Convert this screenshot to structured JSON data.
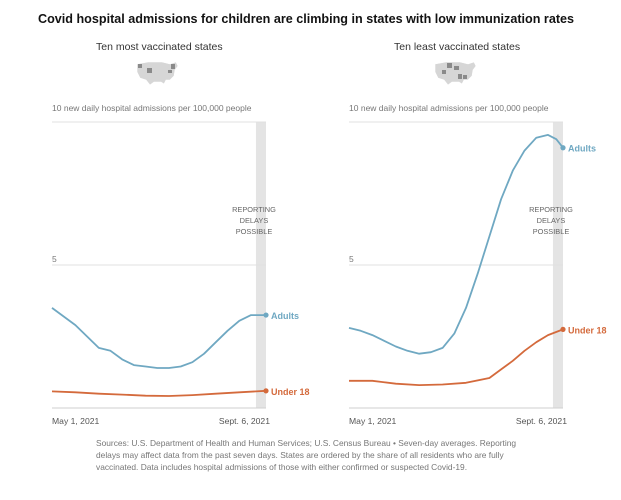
{
  "title": "Covid hospital admissions for children are climbing in states with low immunization rates",
  "colors": {
    "adults": "#6fa8c2",
    "under18": "#d46a3c",
    "shade": "#e4e4e4",
    "grid": "#e0e0e0"
  },
  "map_icon": "us-states-map-icon",
  "footer": "Sources: U.S. Department of Health and Human Services; U.S. Census Bureau  •  Seven-day averages. Reporting delays may affect data from the past seven days. States are ordered by the share of all residents who are fully vaccinated. Data includes hospital admissions of those with either confirmed or suspected Covid-19.",
  "chart_data": [
    {
      "type": "line",
      "title": "Ten most vaccinated states",
      "ylabel": "new daily hospital admissions per 100,000 people",
      "ylim": [
        0,
        10
      ],
      "yticks": [
        {
          "value": 10,
          "label": "10"
        },
        {
          "value": 5,
          "label": "5"
        }
      ],
      "xlim": [
        "2021-05-01",
        "2021-09-06"
      ],
      "xticks": [
        {
          "date": "2021-05-01",
          "label": "May 1, 2021"
        },
        {
          "date": "2021-09-06",
          "label": "Sept. 6, 2021"
        }
      ],
      "shade": {
        "from": "2021-08-31",
        "to": "2021-09-06",
        "label": [
          "REPORTING",
          "DELAYS",
          "POSSIBLE"
        ]
      },
      "series": [
        {
          "name": "Adults",
          "key": "adults",
          "points": [
            [
              "2021-05-01",
              3.5
            ],
            [
              "2021-05-08",
              3.2
            ],
            [
              "2021-05-15",
              2.9
            ],
            [
              "2021-05-22",
              2.5
            ],
            [
              "2021-05-29",
              2.1
            ],
            [
              "2021-06-05",
              2.0
            ],
            [
              "2021-06-12",
              1.7
            ],
            [
              "2021-06-19",
              1.5
            ],
            [
              "2021-06-26",
              1.45
            ],
            [
              "2021-07-03",
              1.4
            ],
            [
              "2021-07-10",
              1.4
            ],
            [
              "2021-07-17",
              1.45
            ],
            [
              "2021-07-24",
              1.6
            ],
            [
              "2021-07-31",
              1.9
            ],
            [
              "2021-08-07",
              2.3
            ],
            [
              "2021-08-14",
              2.7
            ],
            [
              "2021-08-21",
              3.05
            ],
            [
              "2021-08-28",
              3.25
            ],
            [
              "2021-09-06",
              3.25
            ]
          ]
        },
        {
          "name": "Under 18",
          "key": "under18",
          "points": [
            [
              "2021-05-01",
              0.58
            ],
            [
              "2021-05-15",
              0.55
            ],
            [
              "2021-05-29",
              0.5
            ],
            [
              "2021-06-12",
              0.47
            ],
            [
              "2021-06-26",
              0.43
            ],
            [
              "2021-07-10",
              0.42
            ],
            [
              "2021-07-24",
              0.45
            ],
            [
              "2021-08-07",
              0.5
            ],
            [
              "2021-08-21",
              0.55
            ],
            [
              "2021-09-06",
              0.6
            ]
          ]
        }
      ]
    },
    {
      "type": "line",
      "title": "Ten least vaccinated states",
      "ylabel": "new daily hospital admissions per 100,000 people",
      "ylim": [
        0,
        10
      ],
      "yticks": [
        {
          "value": 10,
          "label": "10"
        },
        {
          "value": 5,
          "label": "5"
        }
      ],
      "xlim": [
        "2021-05-01",
        "2021-09-06"
      ],
      "xticks": [
        {
          "date": "2021-05-01",
          "label": "May 1, 2021"
        },
        {
          "date": "2021-09-06",
          "label": "Sept. 6, 2021"
        }
      ],
      "shade": {
        "from": "2021-08-31",
        "to": "2021-09-06",
        "label": [
          "REPORTING",
          "DELAYS",
          "POSSIBLE"
        ]
      },
      "series": [
        {
          "name": "Adults",
          "key": "adults",
          "points": [
            [
              "2021-05-01",
              2.8
            ],
            [
              "2021-05-08",
              2.7
            ],
            [
              "2021-05-15",
              2.55
            ],
            [
              "2021-05-22",
              2.35
            ],
            [
              "2021-05-29",
              2.15
            ],
            [
              "2021-06-05",
              2.0
            ],
            [
              "2021-06-12",
              1.9
            ],
            [
              "2021-06-19",
              1.95
            ],
            [
              "2021-06-26",
              2.1
            ],
            [
              "2021-07-03",
              2.6
            ],
            [
              "2021-07-10",
              3.5
            ],
            [
              "2021-07-17",
              4.7
            ],
            [
              "2021-07-24",
              6.0
            ],
            [
              "2021-07-31",
              7.3
            ],
            [
              "2021-08-07",
              8.3
            ],
            [
              "2021-08-14",
              9.0
            ],
            [
              "2021-08-21",
              9.45
            ],
            [
              "2021-08-28",
              9.55
            ],
            [
              "2021-09-02",
              9.4
            ],
            [
              "2021-09-06",
              9.1
            ]
          ]
        },
        {
          "name": "Under 18",
          "key": "under18",
          "points": [
            [
              "2021-05-01",
              0.95
            ],
            [
              "2021-05-15",
              0.95
            ],
            [
              "2021-05-29",
              0.85
            ],
            [
              "2021-06-12",
              0.8
            ],
            [
              "2021-06-26",
              0.82
            ],
            [
              "2021-07-10",
              0.88
            ],
            [
              "2021-07-24",
              1.05
            ],
            [
              "2021-07-31",
              1.35
            ],
            [
              "2021-08-07",
              1.65
            ],
            [
              "2021-08-14",
              2.0
            ],
            [
              "2021-08-21",
              2.3
            ],
            [
              "2021-08-28",
              2.55
            ],
            [
              "2021-09-06",
              2.75
            ]
          ]
        }
      ]
    }
  ]
}
